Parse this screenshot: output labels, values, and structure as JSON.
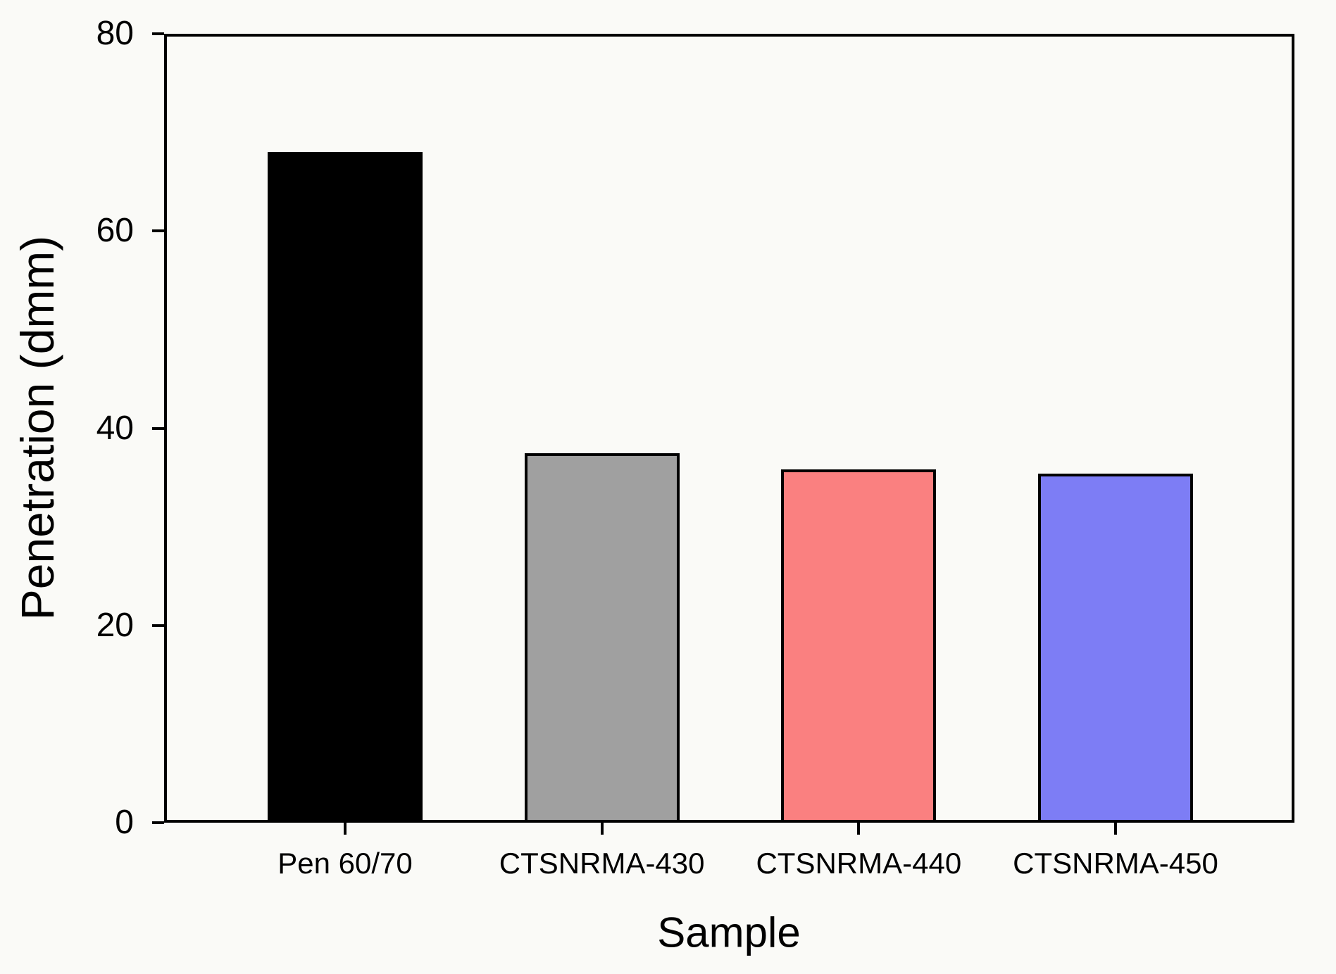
{
  "figure": {
    "background_color": "#FAFAF7",
    "axis_color": "#000000"
  },
  "chart_data": {
    "type": "bar",
    "title": "",
    "categories": [
      "Pen 60/70",
      "CTSNRMA-430",
      "CTSNRMA-440",
      "CTSNRMA-450"
    ],
    "values": [
      68,
      37.5,
      35.8,
      35.4
    ],
    "bar_colors": [
      "#000000",
      "#A0A0A0",
      "#FA8080",
      "#7D7DF5"
    ],
    "bar_border_color": "#000000",
    "xlabel": "Sample",
    "ylabel": "Penetration (dmm)",
    "ylim": [
      0,
      80
    ],
    "yticks": [
      0,
      20,
      40,
      60,
      80
    ],
    "grid": false,
    "legend_position": "none",
    "frame": "full-box",
    "tick_direction": "out"
  }
}
